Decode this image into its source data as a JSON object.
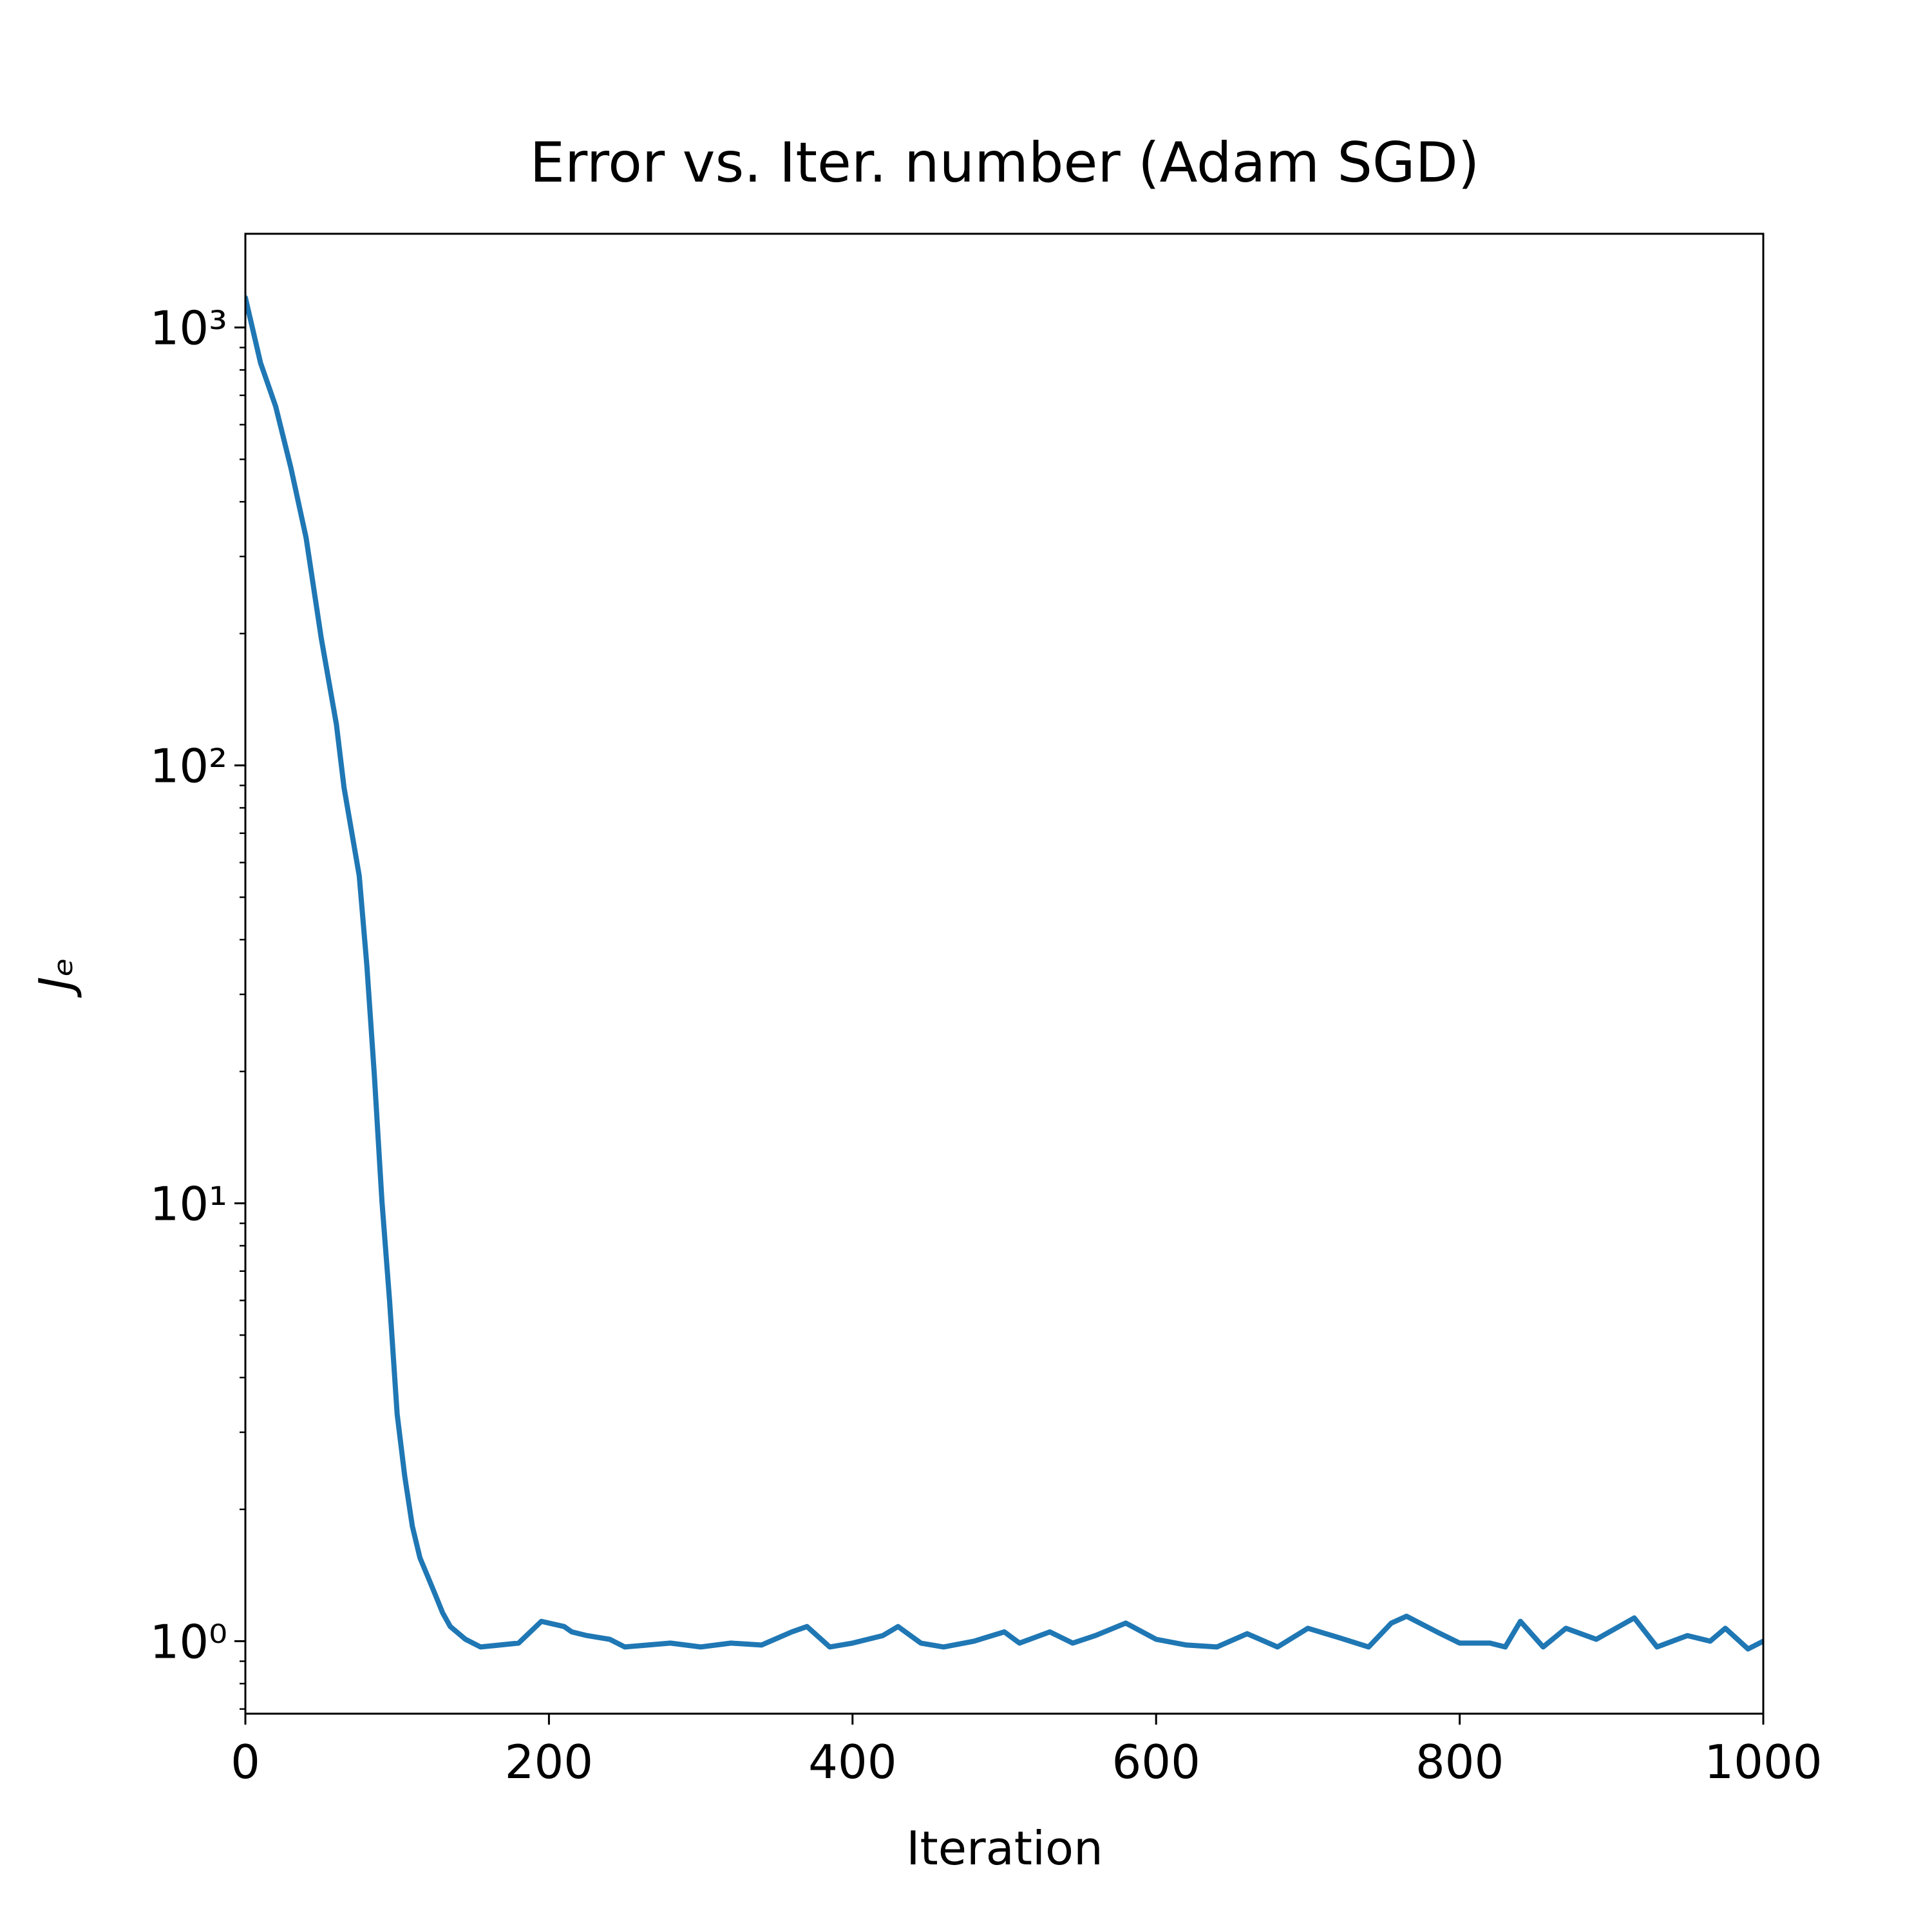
{
  "chart_data": {
    "type": "line",
    "title": "Error vs. Iter. number (Adam SGD)",
    "xlabel": "Iteration",
    "ylabel": "Jₑ",
    "x": [
      0,
      10,
      20,
      30,
      40,
      50,
      60,
      65,
      75,
      80,
      85,
      90,
      95,
      100,
      105,
      110,
      115,
      120,
      125,
      130,
      135,
      145,
      155,
      180,
      195,
      210,
      215,
      225,
      240,
      250,
      280,
      300,
      320,
      340,
      360,
      370,
      385,
      400,
      420,
      430,
      445,
      460,
      480,
      500,
      510,
      530,
      545,
      560,
      580,
      600,
      620,
      640,
      660,
      680,
      700,
      720,
      740,
      755,
      765,
      785,
      800,
      820,
      830,
      840,
      855,
      870,
      890,
      915,
      930,
      950,
      965,
      975,
      990,
      1000
    ],
    "series": [
      {
        "name": "Jₑ",
        "color": "#1f77b4",
        "values": [
          1170,
          830,
          660,
          478,
          331,
          195,
          124,
          89,
          56,
          35,
          19.6,
          10.1,
          6.0,
          3.3,
          2.38,
          1.83,
          1.55,
          1.41,
          1.28,
          1.16,
          1.08,
          1.01,
          0.97,
          0.99,
          1.11,
          1.08,
          1.05,
          1.03,
          1.01,
          0.97,
          0.99,
          0.97,
          0.99,
          0.98,
          1.05,
          1.08,
          0.97,
          0.99,
          1.03,
          1.08,
          0.99,
          0.97,
          1.0,
          1.05,
          0.99,
          1.05,
          0.99,
          1.03,
          1.1,
          1.01,
          0.98,
          0.97,
          1.04,
          0.97,
          1.07,
          1.02,
          0.97,
          1.1,
          1.14,
          1.05,
          0.99,
          0.99,
          0.97,
          1.11,
          0.97,
          1.07,
          1.01,
          1.13,
          0.97,
          1.03,
          1.0,
          1.07,
          0.96,
          1.0
        ]
      }
    ],
    "xlim": [
      0,
      1000
    ],
    "xticks": [
      0,
      200,
      400,
      600,
      800,
      1000
    ],
    "ylim": [
      0.683,
      1637
    ],
    "yscale": "log",
    "yticks": [
      {
        "value": 1,
        "label": "10⁰"
      },
      {
        "value": 10,
        "label": "10¹"
      },
      {
        "value": 100,
        "label": "10²"
      },
      {
        "value": 1000,
        "label": "10³"
      }
    ],
    "yminorticks": [
      0.7,
      0.8,
      0.9,
      2,
      3,
      4,
      5,
      6,
      7,
      8,
      9,
      20,
      30,
      40,
      50,
      60,
      70,
      80,
      90,
      200,
      300,
      400,
      500,
      600,
      700,
      800,
      900
    ],
    "grid": false
  }
}
